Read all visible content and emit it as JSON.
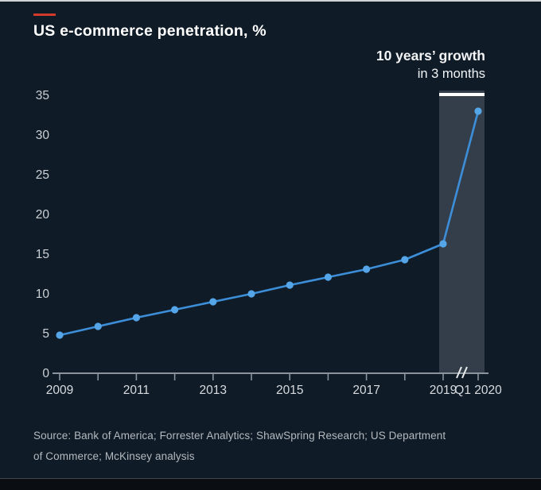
{
  "header": {
    "title": "US e-commerce penetration, %"
  },
  "annotation": {
    "line1": "10 years’ growth",
    "line2": "in 3 months"
  },
  "source": {
    "line1": "Source: Bank of America; Forrester Analytics; ShawSpring Research; US Department",
    "line2": "of Commerce; McKinsey analysis"
  },
  "chart_data": {
    "type": "line",
    "title": "US e-commerce penetration, %",
    "x": [
      "2009",
      "2010",
      "2011",
      "2012",
      "2013",
      "2014",
      "2015",
      "2016",
      "2017",
      "2018",
      "2019",
      "Q1 2020"
    ],
    "values": [
      4.8,
      5.9,
      7.0,
      8.0,
      9.0,
      10.0,
      11.1,
      12.1,
      13.1,
      14.3,
      16.3,
      33.0
    ],
    "yticks": [
      0,
      5,
      10,
      15,
      20,
      25,
      30,
      35
    ],
    "ylim": [
      0,
      35
    ],
    "xtick_labels": [
      "2009",
      "2011",
      "2013",
      "2015",
      "2017",
      "2019",
      "Q1 2020"
    ],
    "axis_break_between": [
      "2019",
      "Q1 2020"
    ],
    "highlight": {
      "from": "2019",
      "to": "Q1 2020",
      "label": "10 years’ growth in 3 months"
    },
    "legend": "none",
    "grid": "off",
    "colors": {
      "background": "#0f1b27",
      "line": "#3d8ed8",
      "point": "#55a5e9",
      "band": "#333e4a",
      "band_marker": "#ffffff",
      "axis": "#8b949d",
      "tick_label": "#d7dbdf",
      "ytick_label": "#ccd1d6"
    }
  }
}
